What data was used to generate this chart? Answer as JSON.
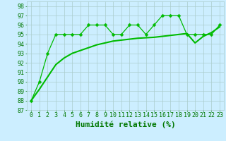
{
  "title": "",
  "xlabel": "Humidité relative (%)",
  "ylabel": "",
  "bg_color": "#cceeff",
  "grid_color": "#aacccc",
  "line_color": "#00bb00",
  "xlim": [
    -0.5,
    23.5
  ],
  "ylim": [
    87,
    98.5
  ],
  "yticks": [
    87,
    88,
    89,
    90,
    91,
    92,
    93,
    94,
    95,
    96,
    97,
    98
  ],
  "xticks": [
    0,
    1,
    2,
    3,
    4,
    5,
    6,
    7,
    8,
    9,
    10,
    11,
    12,
    13,
    14,
    15,
    16,
    17,
    18,
    19,
    20,
    21,
    22,
    23
  ],
  "series1_x": [
    0,
    1,
    2,
    3,
    4,
    5,
    6,
    7,
    8,
    9,
    10,
    11,
    12,
    13,
    14,
    15,
    16,
    17,
    18,
    19,
    20,
    21,
    22,
    23
  ],
  "series1_y": [
    88,
    90,
    93,
    95,
    95,
    95,
    95,
    96,
    96,
    96,
    95,
    95,
    96,
    96,
    95,
    96,
    97,
    97,
    97,
    95,
    95,
    95,
    95,
    96
  ],
  "series2_x": [
    0,
    1,
    2,
    3,
    4,
    5,
    6,
    7,
    8,
    9,
    10,
    11,
    12,
    13,
    14,
    15,
    16,
    17,
    18,
    19,
    20,
    21,
    22,
    23
  ],
  "series2_y": [
    88,
    89.2,
    90.5,
    91.8,
    92.5,
    93.0,
    93.3,
    93.6,
    93.9,
    94.1,
    94.3,
    94.4,
    94.5,
    94.6,
    94.65,
    94.7,
    94.8,
    94.9,
    95.0,
    95.1,
    94.1,
    94.8,
    95.2,
    95.8
  ],
  "font_color": "#007700",
  "font_size_label": 8,
  "font_size_tick": 6,
  "marker_size": 2.5,
  "line_width": 0.9
}
